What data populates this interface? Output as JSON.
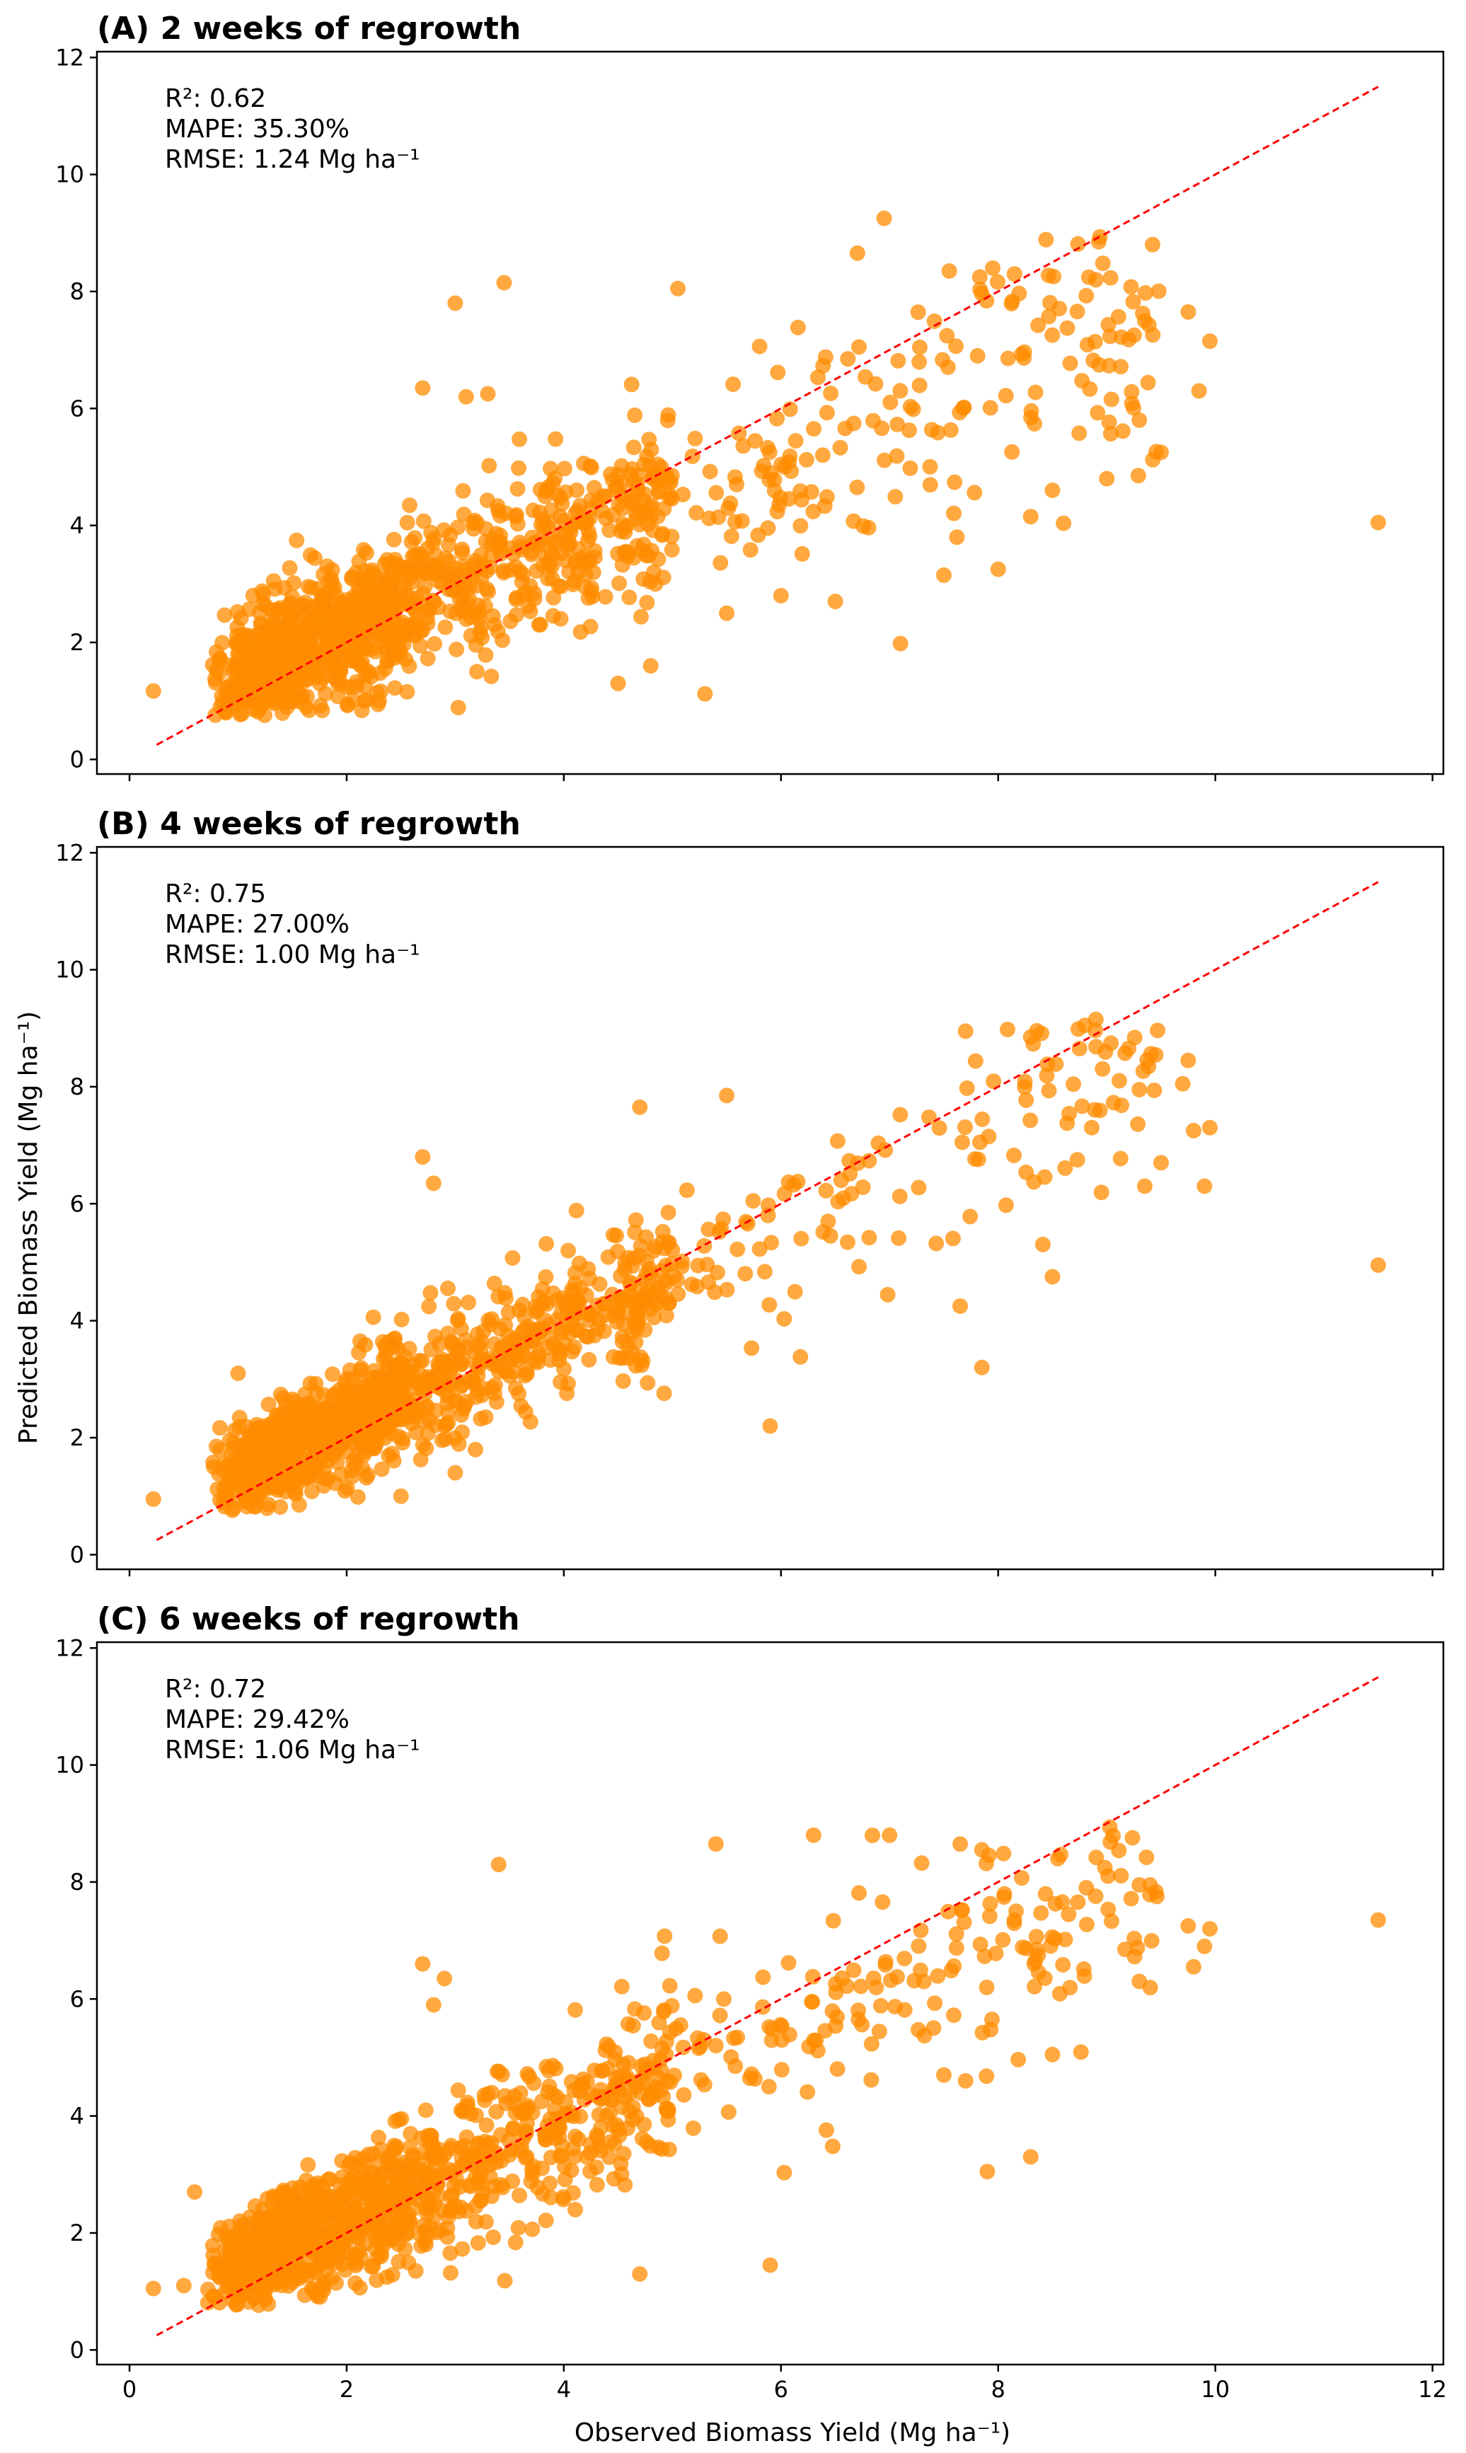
{
  "figure": {
    "ylabel": "Predicted Biomass Yield (Mg ha⁻¹)",
    "xlabel": "Observed Biomass Yield (Mg ha⁻¹)"
  },
  "colors": {
    "points": "#ff8c00",
    "reference_line": "#ff0000",
    "axes": "#000000"
  },
  "chart_data": [
    {
      "type": "scatter",
      "title": "(A) 2 weeks of regrowth",
      "stats": {
        "r2": "R²: 0.62",
        "mape": "MAPE: 35.30%",
        "rmse": "RMSE: 1.24 Mg ha⁻¹"
      },
      "xlim": [
        -0.3,
        12.1
      ],
      "ylim": [
        -0.25,
        12.1
      ],
      "xticks": [
        0,
        2,
        4,
        6,
        8,
        10,
        12
      ],
      "yticks": [
        0,
        2,
        4,
        6,
        8,
        10,
        12
      ],
      "show_xtick_labels": false,
      "reference_line": {
        "style": "dashed",
        "from": [
          0.25,
          0.25
        ],
        "to": [
          11.5,
          11.5
        ]
      },
      "trend": {
        "slope": 0.74,
        "intercept": 0.75,
        "noise": 0.72,
        "seed": 11
      },
      "points": [
        [
          0.22,
          1.17
        ],
        [
          3.0,
          7.8
        ],
        [
          3.45,
          8.15
        ],
        [
          5.05,
          8.05
        ],
        [
          6.95,
          9.25
        ],
        [
          7.55,
          8.35
        ],
        [
          7.95,
          8.4
        ],
        [
          8.15,
          8.3
        ],
        [
          8.9,
          8.2
        ],
        [
          9.35,
          7.5
        ],
        [
          9.75,
          7.65
        ],
        [
          9.95,
          7.15
        ],
        [
          9.85,
          6.3
        ],
        [
          9.3,
          5.8
        ],
        [
          9.5,
          5.25
        ],
        [
          11.5,
          4.05
        ],
        [
          7.1,
          1.98
        ],
        [
          5.3,
          1.12
        ],
        [
          2.3,
          1.0
        ],
        [
          4.5,
          1.3
        ],
        [
          4.8,
          1.6
        ],
        [
          3.2,
          1.5
        ],
        [
          2.7,
          6.35
        ],
        [
          3.3,
          6.25
        ],
        [
          3.1,
          6.2
        ],
        [
          5.5,
          2.5
        ],
        [
          6.0,
          2.8
        ],
        [
          6.5,
          2.7
        ],
        [
          7.5,
          3.15
        ],
        [
          8.0,
          3.25
        ],
        [
          8.5,
          4.6
        ],
        [
          9.0,
          4.8
        ],
        [
          8.3,
          4.15
        ]
      ]
    },
    {
      "type": "scatter",
      "title": "(B) 4 weeks of regrowth",
      "stats": {
        "r2": "R²: 0.75",
        "mape": "MAPE: 27.00%",
        "rmse": "RMSE: 1.00 Mg ha⁻¹"
      },
      "xlim": [
        -0.3,
        12.1
      ],
      "ylim": [
        -0.25,
        12.1
      ],
      "xticks": [
        0,
        2,
        4,
        6,
        8,
        10,
        12
      ],
      "yticks": [
        0,
        2,
        4,
        6,
        8,
        10,
        12
      ],
      "show_xtick_labels": false,
      "reference_line": {
        "style": "dashed",
        "from": [
          0.25,
          0.25
        ],
        "to": [
          11.5,
          11.5
        ]
      },
      "trend": {
        "slope": 0.83,
        "intercept": 0.6,
        "noise": 0.58,
        "seed": 23
      },
      "points": [
        [
          0.22,
          0.95
        ],
        [
          2.7,
          6.8
        ],
        [
          2.8,
          6.35
        ],
        [
          4.7,
          7.65
        ],
        [
          5.5,
          7.85
        ],
        [
          7.7,
          8.95
        ],
        [
          8.3,
          8.85
        ],
        [
          8.9,
          9.15
        ],
        [
          8.8,
          9.05
        ],
        [
          9.3,
          7.95
        ],
        [
          9.75,
          8.45
        ],
        [
          9.7,
          8.05
        ],
        [
          9.95,
          7.3
        ],
        [
          9.8,
          7.25
        ],
        [
          9.9,
          6.3
        ],
        [
          9.35,
          6.3
        ],
        [
          9.5,
          6.7
        ],
        [
          11.5,
          4.95
        ],
        [
          7.85,
          3.2
        ],
        [
          7.65,
          4.25
        ],
        [
          5.9,
          2.2
        ],
        [
          8.5,
          4.75
        ],
        [
          2.5,
          1.0
        ],
        [
          3.0,
          1.4
        ],
        [
          1.0,
          3.1
        ]
      ]
    },
    {
      "type": "scatter",
      "title": "(C) 6 weeks of regrowth",
      "stats": {
        "r2": "R²: 0.72",
        "mape": "MAPE: 29.42%",
        "rmse": "RMSE: 1.06 Mg ha⁻¹"
      },
      "xlim": [
        -0.3,
        12.1
      ],
      "ylim": [
        -0.25,
        12.1
      ],
      "xticks": [
        0,
        2,
        4,
        6,
        8,
        10,
        12
      ],
      "yticks": [
        0,
        2,
        4,
        6,
        8,
        10,
        12
      ],
      "show_xtick_labels": true,
      "reference_line": {
        "style": "dashed",
        "from": [
          0.25,
          0.25
        ],
        "to": [
          11.5,
          11.5
        ]
      },
      "trend": {
        "slope": 0.78,
        "intercept": 0.7,
        "noise": 0.66,
        "seed": 37
      },
      "points": [
        [
          0.22,
          1.05
        ],
        [
          3.4,
          8.3
        ],
        [
          5.4,
          8.65
        ],
        [
          6.3,
          8.8
        ],
        [
          7.0,
          8.8
        ],
        [
          7.85,
          8.55
        ],
        [
          8.55,
          8.4
        ],
        [
          9.3,
          7.95
        ],
        [
          9.4,
          7.95
        ],
        [
          9.75,
          7.25
        ],
        [
          9.95,
          7.2
        ],
        [
          9.9,
          6.9
        ],
        [
          9.8,
          6.55
        ],
        [
          9.3,
          6.3
        ],
        [
          11.5,
          7.35
        ],
        [
          7.9,
          3.05
        ],
        [
          8.3,
          3.3
        ],
        [
          5.9,
          1.45
        ],
        [
          4.7,
          1.3
        ],
        [
          2.7,
          6.6
        ],
        [
          2.9,
          6.35
        ],
        [
          2.8,
          5.9
        ],
        [
          8.5,
          5.05
        ],
        [
          7.7,
          4.6
        ],
        [
          7.5,
          4.7
        ],
        [
          0.6,
          2.7
        ],
        [
          0.5,
          1.1
        ]
      ]
    }
  ]
}
